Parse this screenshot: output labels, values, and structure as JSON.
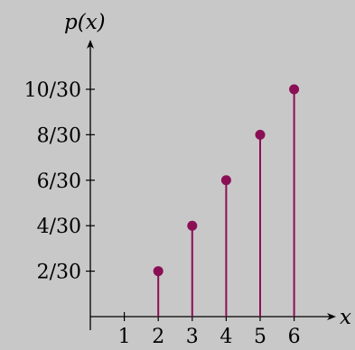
{
  "chart_data": {
    "type": "stem",
    "xlabel": "x",
    "ylabel": "p(x)",
    "x_ticks": [
      1,
      2,
      3,
      4,
      5,
      6
    ],
    "x_tick_labels": [
      "1",
      "2",
      "3",
      "4",
      "5",
      "6"
    ],
    "y_ticks": [
      0.0667,
      0.1333,
      0.2,
      0.2667,
      0.3333
    ],
    "y_tick_labels": [
      "2/30",
      "4/30",
      "6/30",
      "8/30",
      "10/30"
    ],
    "x": [
      2,
      3,
      4,
      5,
      6
    ],
    "values": [
      0.0667,
      0.1333,
      0.2,
      0.2667,
      0.3333
    ],
    "xlim": [
      0,
      7
    ],
    "ylim": [
      0,
      0.3333
    ],
    "grid": false,
    "colors": {
      "background": "#c8c8c8",
      "stem": "#8b0f55",
      "axis": "#000000"
    }
  }
}
